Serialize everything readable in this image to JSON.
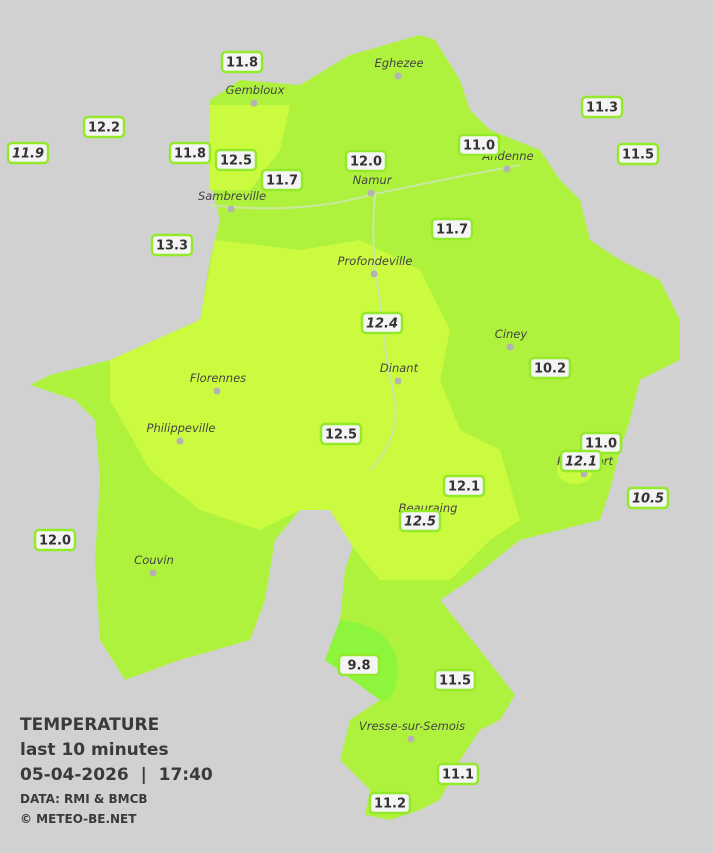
{
  "legend": {
    "title": "TEMPERATURE",
    "period": "last 10 minutes",
    "timestamp": "05-04-2026  |  17:40",
    "source": "DATA: RMI & BMCB",
    "copyright": "© METEO-BE.NET"
  },
  "cities": [
    "Eghezee",
    "Gembloux",
    "Andenne",
    "Namur",
    "Sambreville",
    "Profondeville",
    "Ciney",
    "Dinant",
    "Florennes",
    "Philippeville",
    "Rochefort",
    "Beauraing",
    "Couvin",
    "Vresse-sur-Semois"
  ],
  "stations": [
    "11.8",
    "12.2",
    "11.9",
    "11.8",
    "12.5",
    "11.7",
    "12.0",
    "11.0",
    "11.3",
    "11.5",
    "13.3",
    "11.7",
    "12.4",
    "10.2",
    "12.5",
    "11.0",
    "12.1",
    "12.1",
    "10.5",
    "12.5",
    "12.0",
    "9.8",
    "11.5",
    "11.1",
    "11.2"
  ]
}
